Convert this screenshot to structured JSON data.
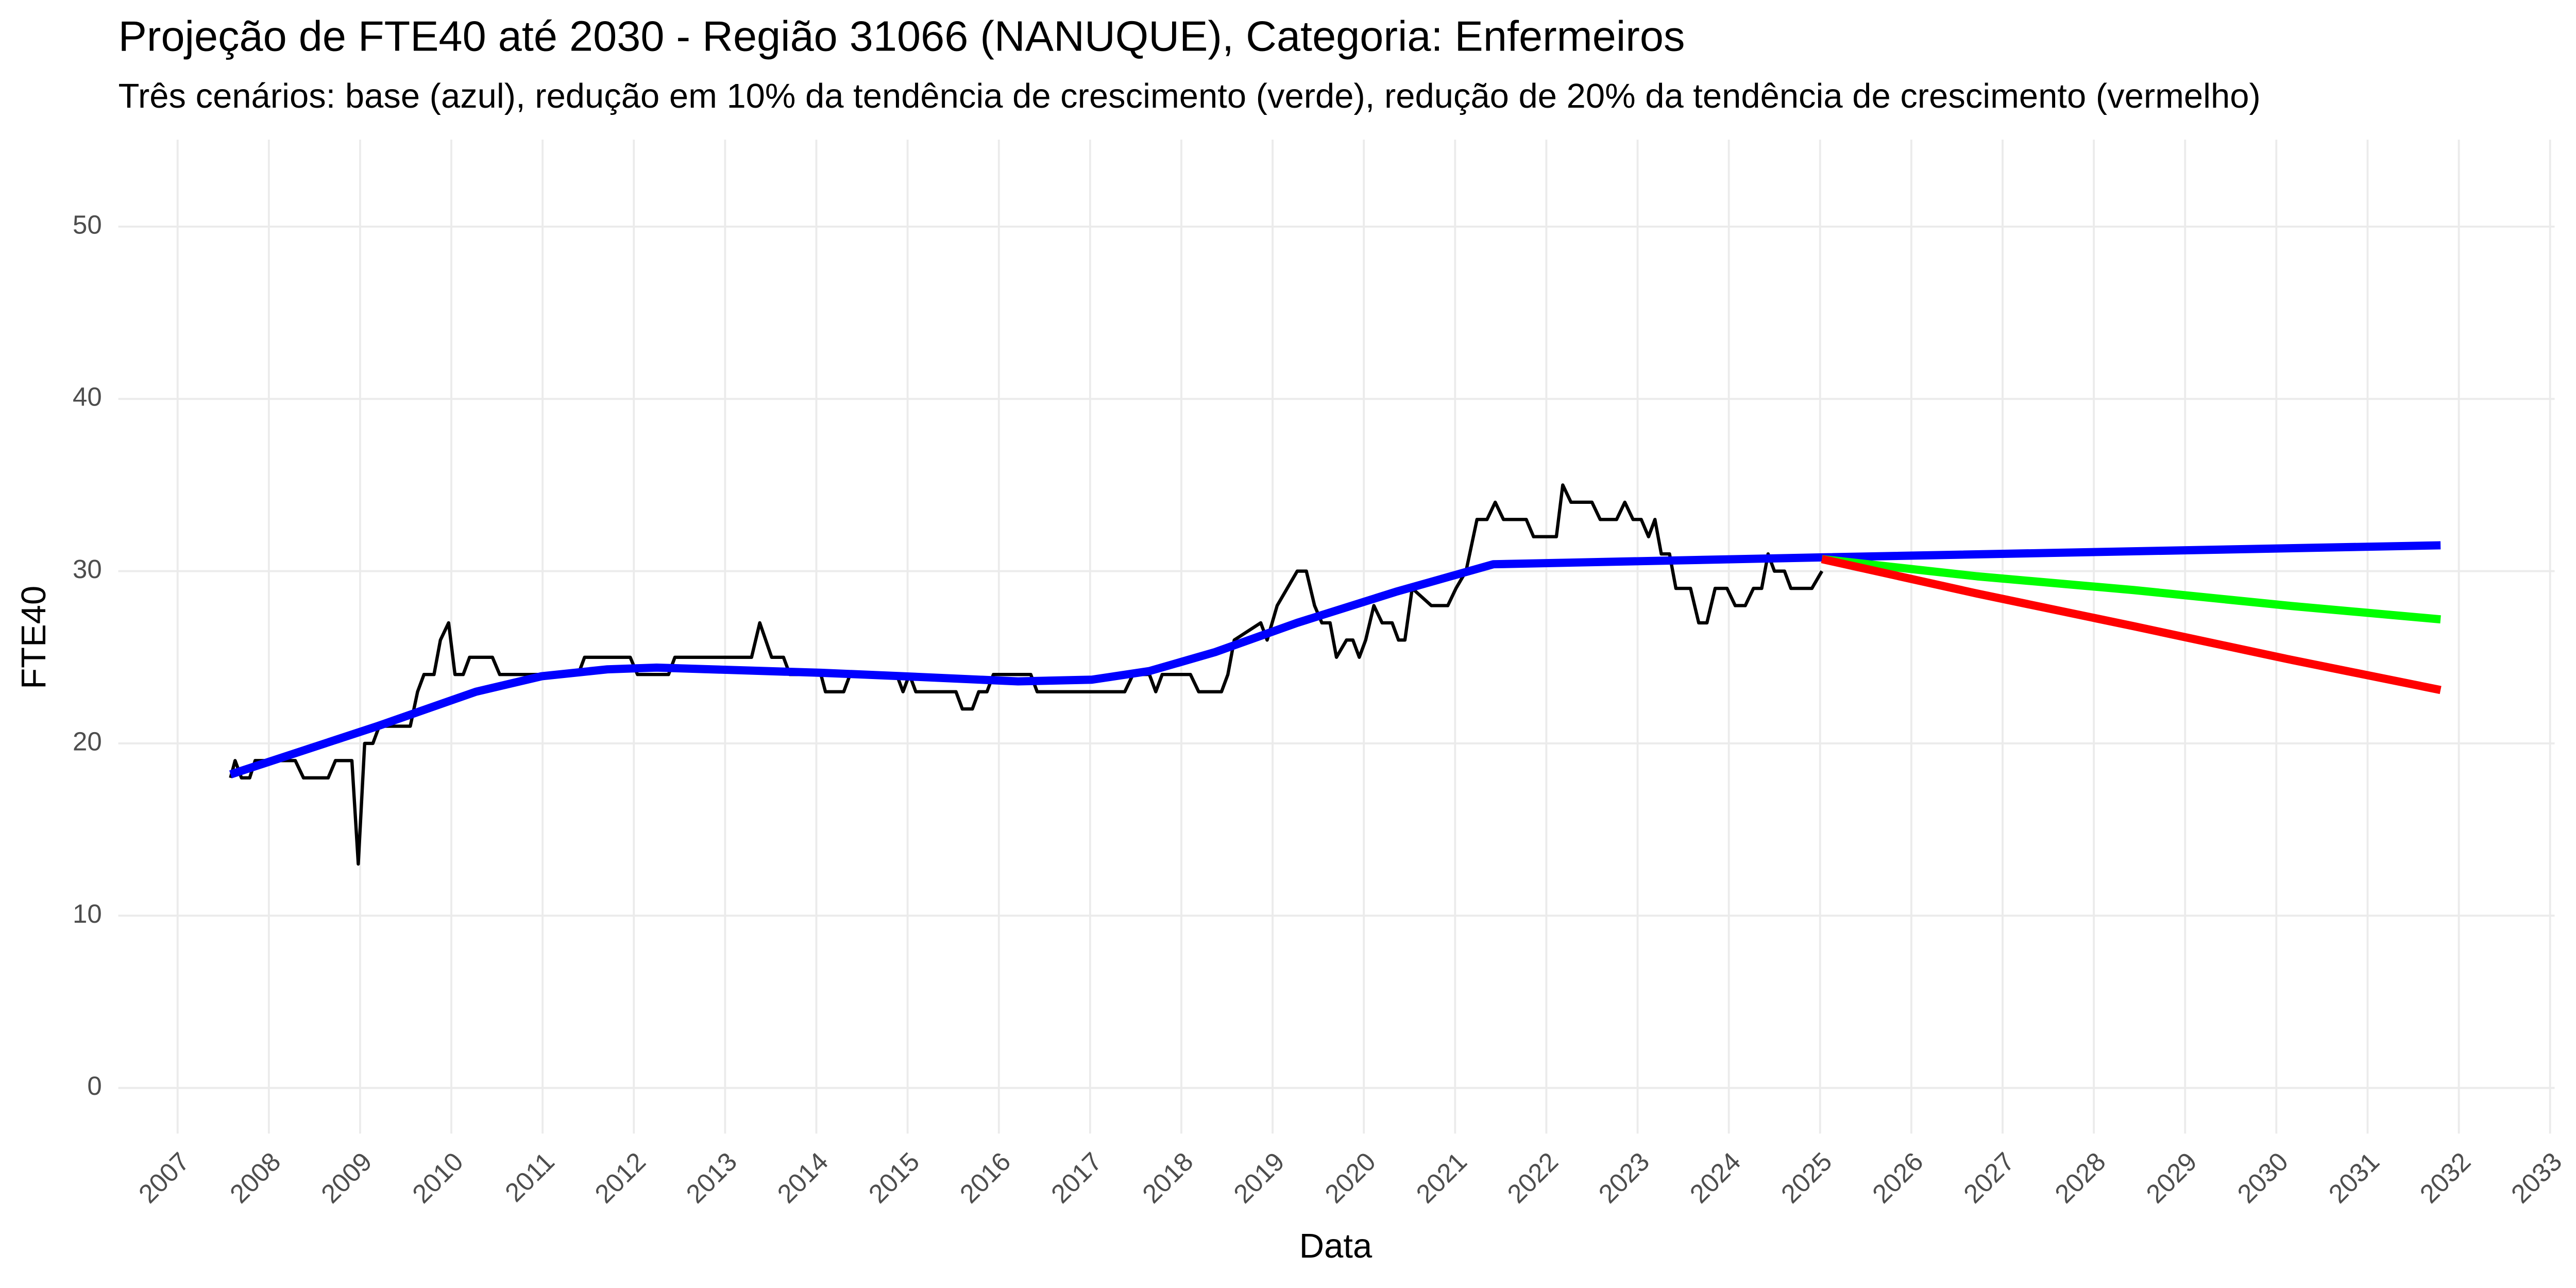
{
  "chart_data": {
    "type": "line",
    "title": "Projeção de FTE40 até 2030 - Região 31066 (NANUQUE), Categoria: Enfermeiros",
    "subtitle": "Três cenários: base (azul), redução em 10% da tendência de crescimento (verde), redução de 20% da tendência de crescimento (vermelho)",
    "x_label": "Data",
    "y_label": "FTE40",
    "xlim": [
      2006.35,
      2033.05
    ],
    "xticks": [
      2007,
      2008,
      2009,
      2010,
      2011,
      2012,
      2013,
      2014,
      2015,
      2016,
      2017,
      2018,
      2019,
      2020,
      2021,
      2022,
      2023,
      2024,
      2025,
      2026,
      2027,
      2028,
      2029,
      2030,
      2031,
      2032,
      2033
    ],
    "ylim": [
      -2.65,
      55.05
    ],
    "yticks": [
      0,
      10,
      20,
      30,
      40,
      50
    ],
    "grid": true,
    "series": [
      {
        "color": "#000000",
        "x": [
          2007.58,
          2007.63,
          2007.7,
          2007.79,
          2007.85,
          2008.29,
          2008.38,
          2008.65,
          2008.73,
          2008.91,
          2008.98,
          2009.05,
          2009.14,
          2009.21,
          2009.55,
          2009.63,
          2009.7,
          2009.81,
          2009.88,
          2009.97,
          2010.04,
          2010.13,
          2010.2,
          2010.45,
          2010.53,
          2011.39,
          2011.46,
          2011.96,
          2012.04,
          2012.38,
          2012.45,
          2013.29,
          2013.38,
          2013.51,
          2013.64,
          2013.71,
          2014.05,
          2014.1,
          2014.3,
          2014.37,
          2014.88,
          2014.95,
          2015.02,
          2015.09,
          2015.53,
          2015.6,
          2015.71,
          2015.78,
          2015.87,
          2015.94,
          2016.35,
          2016.42,
          2017.38,
          2017.47,
          2017.65,
          2017.72,
          2017.79,
          2018.1,
          2018.19,
          2018.44,
          2018.51,
          2018.58,
          2018.87,
          2018.94,
          2019.05,
          2019.27,
          2019.37,
          2019.46,
          2019.54,
          2019.63,
          2019.7,
          2019.81,
          2019.88,
          2019.95,
          2020.02,
          2020.11,
          2020.2,
          2020.31,
          2020.38,
          2020.45,
          2020.53,
          2020.74,
          2020.92,
          2021.01,
          2021.12,
          2021.24,
          2021.35,
          2021.44,
          2021.53,
          2021.78,
          2021.86,
          2022.11,
          2022.18,
          2022.27,
          2022.5,
          2022.59,
          2022.77,
          2022.86,
          2022.95,
          2023.04,
          2023.12,
          2023.19,
          2023.26,
          2023.35,
          2023.42,
          2023.58,
          2023.67,
          2023.76,
          2023.85,
          2023.98,
          2024.07,
          2024.18,
          2024.27,
          2024.36,
          2024.43,
          2024.5,
          2024.61,
          2024.68,
          2024.91,
          2025.02
        ],
        "values": [
          18,
          19,
          18,
          18,
          19,
          19,
          18,
          18,
          19,
          19,
          13,
          20,
          20,
          21,
          21,
          23,
          24,
          24,
          26,
          27,
          24,
          24,
          25,
          25,
          24,
          24,
          25,
          25,
          24,
          24,
          25,
          25,
          27,
          25,
          25,
          24,
          24,
          23,
          23,
          24,
          24,
          23,
          24,
          23,
          23,
          22,
          22,
          23,
          23,
          24,
          24,
          23,
          23,
          24,
          24,
          23,
          24,
          24,
          23,
          23,
          24,
          26,
          27,
          26,
          28,
          30,
          30,
          28,
          27,
          27,
          25,
          26,
          26,
          25,
          26,
          28,
          27,
          27,
          26,
          26,
          29,
          28,
          28,
          29,
          30,
          33,
          33,
          34,
          33,
          33,
          32,
          32,
          35,
          34,
          34,
          33,
          33,
          34,
          33,
          33,
          32,
          33,
          31,
          31,
          29,
          29,
          27,
          27,
          29,
          29,
          28,
          28,
          29,
          29,
          31,
          30,
          30,
          29,
          29,
          30
        ]
      },
      {
        "color": "#0000ff",
        "x": [
          2007.58,
          2009.19,
          2010.27,
          2010.99,
          2011.71,
          2012.25,
          2014.05,
          2014.95,
          2016.21,
          2017.02,
          2017.65,
          2018.37,
          2019.27,
          2020.35,
          2021.42,
          2025.02,
          2031.8
        ],
        "values": [
          18.2,
          21,
          23,
          23.9,
          24.3,
          24.4,
          24.1,
          23.9,
          23.6,
          23.7,
          24.2,
          25.3,
          27,
          28.8,
          30.4,
          30.8,
          31.5
        ]
      },
      {
        "color": "#00ff00",
        "x": [
          2025.02,
          2026.72,
          2028.44,
          2030.12,
          2031.8
        ],
        "values": [
          30.7,
          29.7,
          28.9,
          28.0,
          27.2
        ]
      },
      {
        "color": "#ff0000",
        "x": [
          2025.02,
          2026.72,
          2028.44,
          2030.12,
          2031.8
        ],
        "values": [
          30.7,
          28.7,
          26.8,
          24.9,
          23.1
        ]
      }
    ]
  }
}
